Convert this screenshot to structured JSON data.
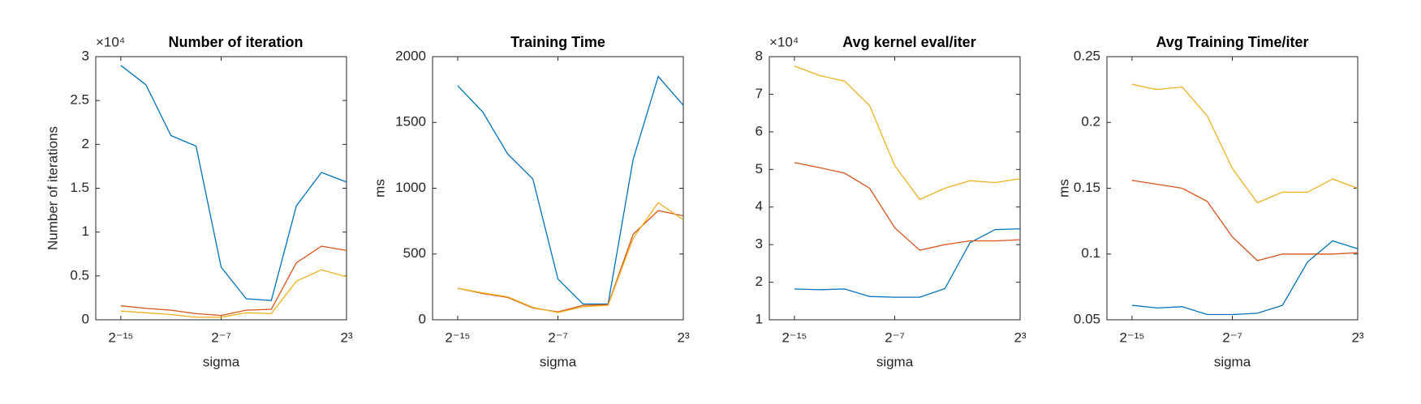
{
  "chart_data": [
    {
      "type": "line",
      "title": "Number of iteration",
      "xlabel": "sigma",
      "ylabel": "Number of iterations",
      "exponent_label": "×10⁴",
      "xscale": "log2",
      "x": [
        3.0517578125e-05,
        0.0001220703125,
        0.00048828125,
        0.001953125,
        0.0078125,
        0.03125,
        0.125,
        0.5,
        2,
        8
      ],
      "xlim": [
        7.62939453125e-06,
        8
      ],
      "xticks": [
        {
          "value": 3.0517578125e-05,
          "label": "2⁻¹⁵"
        },
        {
          "value": 0.0078125,
          "label": "2⁻⁷"
        },
        {
          "value": 8,
          "label": "2³"
        }
      ],
      "ylim": [
        0,
        3
      ],
      "yticks": [
        0,
        0.5,
        1,
        1.5,
        2,
        2.5,
        3
      ],
      "series": [
        {
          "color": "#0072BD",
          "values": [
            2.9,
            2.68,
            2.1,
            1.98,
            0.6,
            0.24,
            0.22,
            1.3,
            1.68,
            1.57
          ]
        },
        {
          "color": "#D95319",
          "values": [
            0.16,
            0.13,
            0.11,
            0.07,
            0.05,
            0.11,
            0.12,
            0.65,
            0.84,
            0.79
          ]
        },
        {
          "color": "#EDB120",
          "values": [
            0.1,
            0.08,
            0.06,
            0.03,
            0.03,
            0.08,
            0.07,
            0.44,
            0.57,
            0.49
          ]
        }
      ]
    },
    {
      "type": "line",
      "title": "Training Time",
      "xlabel": "sigma",
      "ylabel": "ms",
      "xscale": "log2",
      "x": [
        3.0517578125e-05,
        0.0001220703125,
        0.00048828125,
        0.001953125,
        0.0078125,
        0.03125,
        0.125,
        0.5,
        2,
        8
      ],
      "xlim": [
        7.62939453125e-06,
        8
      ],
      "xticks": [
        {
          "value": 3.0517578125e-05,
          "label": "2⁻¹⁵"
        },
        {
          "value": 0.0078125,
          "label": "2⁻⁷"
        },
        {
          "value": 8,
          "label": "2³"
        }
      ],
      "ylim": [
        0,
        2000
      ],
      "yticks": [
        0,
        500,
        1000,
        1500,
        2000
      ],
      "series": [
        {
          "color": "#0072BD",
          "values": [
            1780,
            1580,
            1260,
            1070,
            310,
            120,
            120,
            1220,
            1850,
            1630
          ]
        },
        {
          "color": "#D95319",
          "values": [
            240,
            200,
            170,
            90,
            60,
            110,
            115,
            650,
            830,
            790
          ]
        },
        {
          "color": "#EDB120",
          "values": [
            240,
            205,
            175,
            95,
            55,
            100,
            110,
            620,
            890,
            760
          ]
        }
      ]
    },
    {
      "type": "line",
      "title": "Avg kernel eval/iter",
      "xlabel": "sigma",
      "exponent_label": "×10⁴",
      "xscale": "log2",
      "x": [
        3.0517578125e-05,
        0.0001220703125,
        0.00048828125,
        0.001953125,
        0.0078125,
        0.03125,
        0.125,
        0.5,
        2,
        8
      ],
      "xlim": [
        7.62939453125e-06,
        8
      ],
      "xticks": [
        {
          "value": 3.0517578125e-05,
          "label": "2⁻¹⁵"
        },
        {
          "value": 0.0078125,
          "label": "2⁻⁷"
        },
        {
          "value": 8,
          "label": "2³"
        }
      ],
      "ylim": [
        1,
        8
      ],
      "yticks": [
        1,
        2,
        3,
        4,
        5,
        6,
        7,
        8
      ],
      "series": [
        {
          "color": "#0072BD",
          "values": [
            1.82,
            1.8,
            1.82,
            1.62,
            1.6,
            1.6,
            1.83,
            3.05,
            3.4,
            3.42
          ]
        },
        {
          "color": "#D95319",
          "values": [
            5.18,
            5.05,
            4.9,
            4.5,
            3.45,
            2.85,
            3.0,
            3.1,
            3.1,
            3.13
          ]
        },
        {
          "color": "#EDB120",
          "values": [
            7.75,
            7.5,
            7.35,
            6.7,
            5.1,
            4.2,
            4.5,
            4.7,
            4.65,
            4.75
          ]
        }
      ]
    },
    {
      "type": "line",
      "title": "Avg Training Time/iter",
      "xlabel": "sigma",
      "ylabel": "ms",
      "xscale": "log2",
      "x": [
        3.0517578125e-05,
        0.0001220703125,
        0.00048828125,
        0.001953125,
        0.0078125,
        0.03125,
        0.125,
        0.5,
        2,
        8
      ],
      "xlim": [
        7.62939453125e-06,
        8
      ],
      "xticks": [
        {
          "value": 3.0517578125e-05,
          "label": "2⁻¹⁵"
        },
        {
          "value": 0.0078125,
          "label": "2⁻⁷"
        },
        {
          "value": 8,
          "label": "2³"
        }
      ],
      "ylim": [
        0.05,
        0.25
      ],
      "yticks": [
        0.05,
        0.1,
        0.15,
        0.2,
        0.25
      ],
      "series": [
        {
          "color": "#0072BD",
          "values": [
            0.061,
            0.059,
            0.06,
            0.054,
            0.054,
            0.055,
            0.061,
            0.094,
            0.11,
            0.104
          ]
        },
        {
          "color": "#D95319",
          "values": [
            0.156,
            0.153,
            0.15,
            0.14,
            0.113,
            0.095,
            0.1,
            0.1,
            0.1,
            0.101
          ]
        },
        {
          "color": "#EDB120",
          "values": [
            0.229,
            0.225,
            0.227,
            0.205,
            0.165,
            0.139,
            0.147,
            0.147,
            0.157,
            0.15
          ]
        }
      ]
    }
  ]
}
